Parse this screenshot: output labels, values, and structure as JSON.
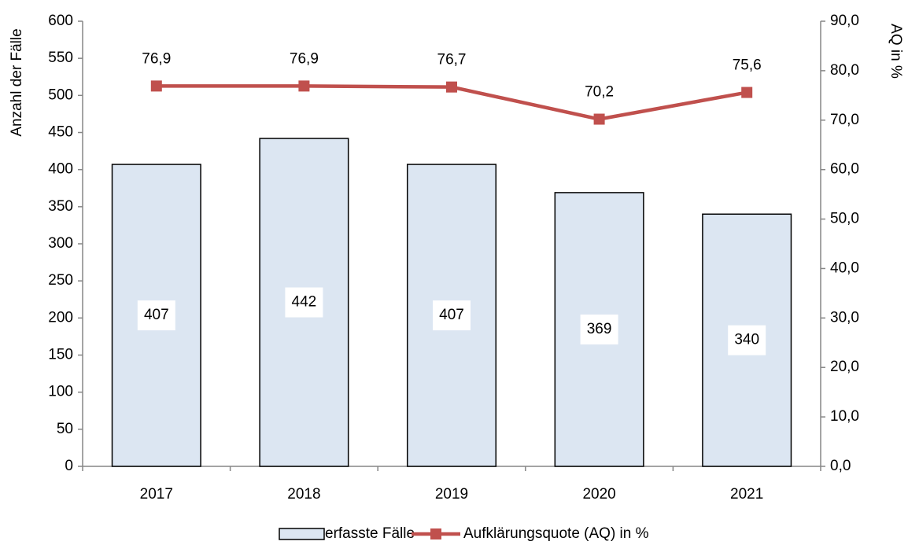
{
  "chart_data": {
    "type": "bar",
    "categories": [
      "2017",
      "2018",
      "2019",
      "2020",
      "2021"
    ],
    "series": [
      {
        "name": "erfasste Fälle",
        "type": "bar",
        "color": "#dce6f2",
        "values": [
          407,
          442,
          407,
          369,
          340
        ]
      },
      {
        "name": "Aufklärungsquote (AQ) in %",
        "type": "line",
        "axis": "y2",
        "color": "#c0504d",
        "values": [
          76.9,
          76.9,
          76.7,
          70.2,
          75.6
        ],
        "value_labels": [
          "76,9",
          "76,9",
          "76,7",
          "70,2",
          "75,6"
        ]
      }
    ],
    "ylabel": "Anzahl der Fälle",
    "y2label": "AQ in %",
    "ylim": [
      0,
      600
    ],
    "yticks": [
      0,
      50,
      100,
      150,
      200,
      250,
      300,
      350,
      400,
      450,
      500,
      550,
      600
    ],
    "y2lim": [
      0,
      90
    ],
    "y2ticks": [
      {
        "value": 0,
        "label": "0,0"
      },
      {
        "value": 10,
        "label": "10,0"
      },
      {
        "value": 20,
        "label": "20,0"
      },
      {
        "value": 30,
        "label": "30,0"
      },
      {
        "value": 40,
        "label": "40,0"
      },
      {
        "value": 50,
        "label": "50,0"
      },
      {
        "value": 60,
        "label": "60,0"
      },
      {
        "value": 70,
        "label": "70,0"
      },
      {
        "value": 80,
        "label": "80,0"
      },
      {
        "value": 90,
        "label": "90,0"
      }
    ],
    "legend": "bottom"
  }
}
